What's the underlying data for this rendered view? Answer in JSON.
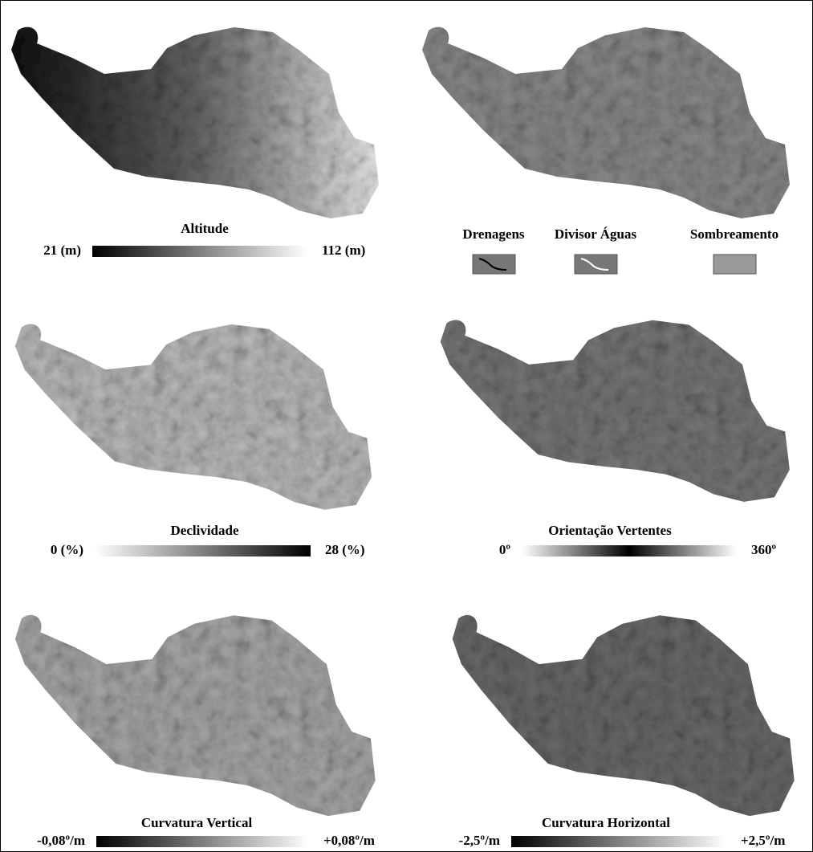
{
  "panels": [
    {
      "title": "Altitude",
      "min_label": "21 (m)",
      "max_label": "112 (m)"
    },
    {
      "legend": [
        "Drenagens",
        "Divisor Águas",
        "Sombreamento"
      ]
    },
    {
      "title": "Declividade",
      "min_label": "0 (%)",
      "max_label": "28 (%)"
    },
    {
      "title": "Orientação Vertentes",
      "min_label": "0º",
      "max_label": "360º"
    },
    {
      "title": "Curvatura Vertical",
      "min_label": "-0,08º/m",
      "max_label": "+0,08º/m"
    },
    {
      "title": "Curvatura Horizontal",
      "min_label": "-2,5º/m",
      "max_label": "+2,5º/m"
    }
  ]
}
